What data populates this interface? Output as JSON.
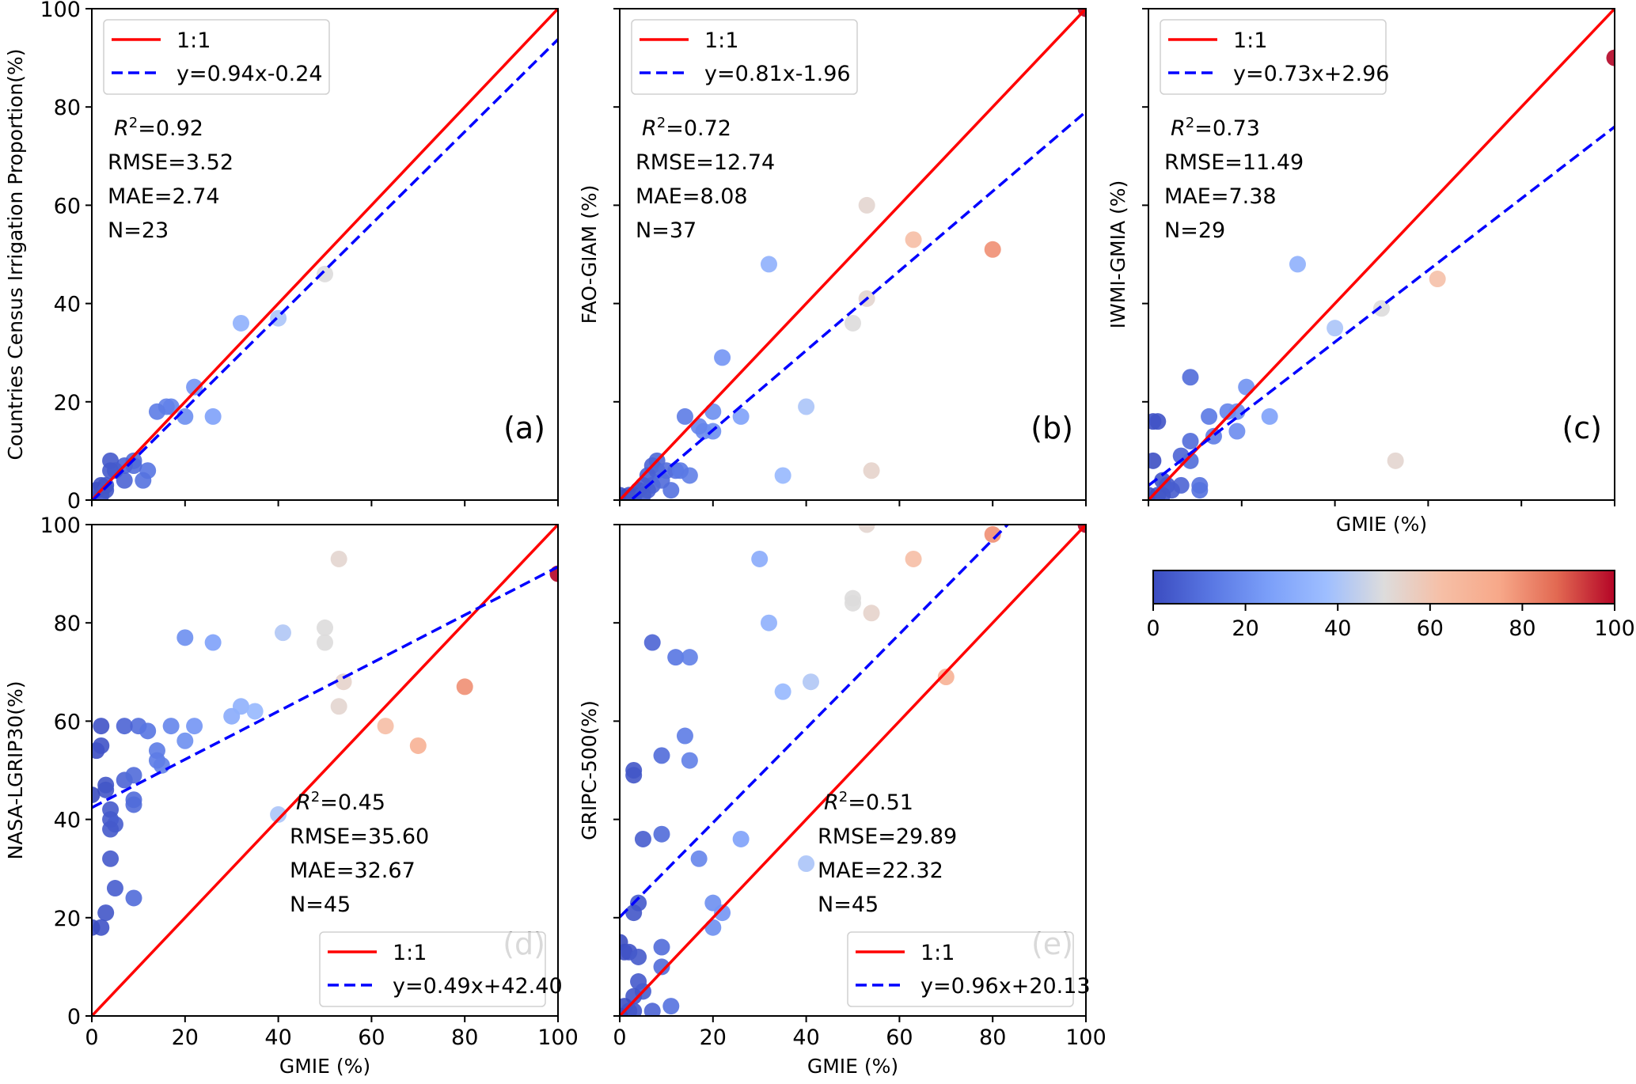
{
  "figure": {
    "colorbar": {
      "colormap": "coolwarm",
      "range": [
        0,
        100
      ],
      "ticks": [
        "0",
        "20",
        "40",
        "60",
        "80",
        "100"
      ]
    }
  },
  "chart_data": [
    {
      "id": "a",
      "type": "scatter",
      "panel_label": "(a)",
      "xlabel": "",
      "ylabel": "Countries Census Irrigation Proportion(%)",
      "xlim": [
        0,
        100
      ],
      "ylim": [
        0,
        100
      ],
      "xticks": [
        "0",
        "20",
        "40",
        "60",
        "80",
        "100"
      ],
      "yticks": [
        "0",
        "20",
        "40",
        "60",
        "80",
        "100"
      ],
      "show_xticklabels": false,
      "show_yticklabels": true,
      "legend": {
        "position": "top-left",
        "entries": [
          "1:1",
          "y=0.94x-0.24"
        ]
      },
      "fit": {
        "slope": 0.94,
        "intercept": -0.24
      },
      "stats": {
        "r2": "=0.92",
        "rmse": "RMSE=3.52",
        "mae": "MAE=2.74",
        "n": "N=23",
        "position": "upper-left"
      },
      "points": [
        [
          50,
          46
        ],
        [
          40,
          37
        ],
        [
          32,
          36
        ],
        [
          22,
          23
        ],
        [
          17,
          19
        ],
        [
          16,
          19
        ],
        [
          20,
          17
        ],
        [
          14,
          18
        ],
        [
          26,
          17
        ],
        [
          12,
          6
        ],
        [
          11,
          4
        ],
        [
          9,
          8
        ],
        [
          9,
          7
        ],
        [
          7,
          7
        ],
        [
          7,
          4
        ],
        [
          4,
          8
        ],
        [
          5,
          6
        ],
        [
          4,
          6
        ],
        [
          3,
          3
        ],
        [
          2,
          3
        ],
        [
          1,
          2
        ],
        [
          2,
          1
        ],
        [
          3,
          2
        ]
      ]
    },
    {
      "id": "b",
      "type": "scatter",
      "panel_label": "(b)",
      "xlabel": "",
      "ylabel": "FAO-GIAM (%)",
      "xlim": [
        0,
        100
      ],
      "ylim": [
        0,
        100
      ],
      "xticks": [
        "0",
        "20",
        "40",
        "60",
        "80",
        "100"
      ],
      "yticks": [
        "0",
        "20",
        "40",
        "60",
        "80",
        "100"
      ],
      "show_xticklabels": false,
      "show_yticklabels": false,
      "legend": {
        "position": "top-left",
        "entries": [
          "1:1",
          "y=0.81x-1.96"
        ]
      },
      "fit": {
        "slope": 0.81,
        "intercept": -1.96
      },
      "stats": {
        "r2": "=0.72",
        "rmse": "RMSE=12.74",
        "mae": "MAE=8.08",
        "n": "N=37",
        "position": "upper-left"
      },
      "points": [
        [
          100,
          100
        ],
        [
          53,
          60
        ],
        [
          63,
          53
        ],
        [
          80,
          51
        ],
        [
          53,
          41
        ],
        [
          50,
          36
        ],
        [
          32,
          48
        ],
        [
          22,
          29
        ],
        [
          40,
          19
        ],
        [
          35,
          5
        ],
        [
          54,
          6
        ],
        [
          20,
          18
        ],
        [
          26,
          17
        ],
        [
          14,
          17
        ],
        [
          18,
          14
        ],
        [
          20,
          14
        ],
        [
          15,
          5
        ],
        [
          11,
          2
        ],
        [
          12,
          6
        ],
        [
          8,
          8
        ],
        [
          7,
          7
        ],
        [
          8,
          6
        ],
        [
          6,
          5
        ],
        [
          7,
          3
        ],
        [
          5,
          3
        ],
        [
          4,
          2
        ],
        [
          3,
          1
        ],
        [
          2,
          1
        ],
        [
          1,
          0.5
        ],
        [
          0,
          1
        ],
        [
          9,
          4
        ],
        [
          10,
          6
        ],
        [
          6,
          2
        ],
        [
          3,
          0
        ],
        [
          13,
          6
        ],
        [
          17,
          15
        ],
        [
          5,
          1
        ]
      ]
    },
    {
      "id": "c",
      "type": "scatter",
      "panel_label": "(c)",
      "xlabel": "GMIE (%)",
      "ylabel": "IWMI-GMIA (%)",
      "xlim": [
        0,
        100
      ],
      "ylim": [
        0,
        100
      ],
      "xticks": [
        "0",
        "20",
        "40",
        "60",
        "80",
        "100"
      ],
      "yticks": [
        "0",
        "20",
        "40",
        "60",
        "80",
        "100"
      ],
      "show_xticklabels": false,
      "show_yticklabels": false,
      "legend": {
        "position": "top-left",
        "entries": [
          "1:1",
          "y=0.73x+2.96"
        ]
      },
      "fit": {
        "slope": 0.73,
        "intercept": 2.96
      },
      "stats": {
        "r2": "=0.73",
        "rmse": "RMSE=11.49",
        "mae": "MAE=7.38",
        "n": "N=29",
        "position": "upper-left"
      },
      "points": [
        [
          100,
          90
        ],
        [
          32,
          48
        ],
        [
          62,
          45
        ],
        [
          50,
          39
        ],
        [
          40,
          35
        ],
        [
          53,
          8
        ],
        [
          9,
          25
        ],
        [
          21,
          23
        ],
        [
          17,
          18
        ],
        [
          19,
          18
        ],
        [
          26,
          17
        ],
        [
          13,
          17
        ],
        [
          19,
          14
        ],
        [
          14,
          13
        ],
        [
          1,
          16
        ],
        [
          2,
          16
        ],
        [
          9,
          12
        ],
        [
          7,
          9
        ],
        [
          9,
          8
        ],
        [
          1,
          8
        ],
        [
          7,
          3
        ],
        [
          11,
          3
        ],
        [
          11,
          2
        ],
        [
          3,
          4
        ],
        [
          4,
          3
        ],
        [
          5,
          2
        ],
        [
          2,
          1
        ],
        [
          0,
          1
        ],
        [
          3,
          1
        ]
      ]
    },
    {
      "id": "d",
      "type": "scatter",
      "panel_label": "(d)",
      "xlabel": "GMIE (%)",
      "ylabel": "NASA-LGRIP30(%)",
      "xlim": [
        0,
        100
      ],
      "ylim": [
        0,
        100
      ],
      "xticks": [
        "0",
        "20",
        "40",
        "60",
        "80",
        "100"
      ],
      "yticks": [
        "0",
        "20",
        "40",
        "60",
        "80",
        "100"
      ],
      "show_xticklabels": true,
      "show_yticklabels": true,
      "legend": {
        "position": "bottom-right",
        "entries": [
          "1:1",
          "y=0.49x+42.40"
        ]
      },
      "fit": {
        "slope": 0.49,
        "intercept": 42.4
      },
      "stats": {
        "r2": "=0.45",
        "rmse": "RMSE=35.60",
        "mae": "MAE=32.67",
        "n": "N=45",
        "position": "lower-middle"
      },
      "points": [
        [
          100,
          90
        ],
        [
          53,
          93
        ],
        [
          50,
          79
        ],
        [
          50,
          76
        ],
        [
          41,
          78
        ],
        [
          20,
          77
        ],
        [
          26,
          76
        ],
        [
          80,
          67
        ],
        [
          54,
          68
        ],
        [
          53,
          63
        ],
        [
          63,
          59
        ],
        [
          70,
          55
        ],
        [
          30,
          61
        ],
        [
          32,
          63
        ],
        [
          35,
          62
        ],
        [
          40,
          41
        ],
        [
          17,
          59
        ],
        [
          22,
          59
        ],
        [
          10,
          59
        ],
        [
          12,
          58
        ],
        [
          7,
          59
        ],
        [
          2,
          59
        ],
        [
          1,
          54
        ],
        [
          2,
          55
        ],
        [
          20,
          56
        ],
        [
          14,
          54
        ],
        [
          14,
          52
        ],
        [
          15,
          51
        ],
        [
          7,
          48
        ],
        [
          9,
          49
        ],
        [
          3,
          47
        ],
        [
          3,
          46
        ],
        [
          9,
          44
        ],
        [
          9,
          43
        ],
        [
          4,
          42
        ],
        [
          4,
          40
        ],
        [
          5,
          39
        ],
        [
          4,
          38
        ],
        [
          0,
          45
        ],
        [
          4,
          32
        ],
        [
          5,
          26
        ],
        [
          9,
          24
        ],
        [
          3,
          21
        ],
        [
          2,
          18
        ],
        [
          0,
          18
        ]
      ]
    },
    {
      "id": "e",
      "type": "scatter",
      "panel_label": "(e)",
      "xlabel": "GMIE (%)",
      "ylabel": "GRIPC-500(%)",
      "xlim": [
        0,
        100
      ],
      "ylim": [
        0,
        100
      ],
      "xticks": [
        "0",
        "20",
        "40",
        "60",
        "80",
        "100"
      ],
      "yticks": [
        "0",
        "20",
        "40",
        "60",
        "80",
        "100"
      ],
      "show_xticklabels": true,
      "show_yticklabels": false,
      "legend": {
        "position": "bottom-right",
        "entries": [
          "1:1",
          "y=0.96x+20.13"
        ]
      },
      "fit": {
        "slope": 0.96,
        "intercept": 20.13
      },
      "stats": {
        "r2": "=0.51",
        "rmse": "RMSE=29.89",
        "mae": "MAE=22.32",
        "n": "N=45",
        "position": "lower-middle"
      },
      "points": [
        [
          100,
          100
        ],
        [
          53,
          100
        ],
        [
          80,
          98
        ],
        [
          30,
          93
        ],
        [
          63,
          93
        ],
        [
          50,
          85
        ],
        [
          50,
          84
        ],
        [
          54,
          82
        ],
        [
          32,
          80
        ],
        [
          7,
          76
        ],
        [
          12,
          73
        ],
        [
          15,
          73
        ],
        [
          70,
          69
        ],
        [
          41,
          68
        ],
        [
          35,
          66
        ],
        [
          14,
          57
        ],
        [
          15,
          52
        ],
        [
          9,
          53
        ],
        [
          3,
          50
        ],
        [
          3,
          49
        ],
        [
          9,
          37
        ],
        [
          5,
          36
        ],
        [
          26,
          36
        ],
        [
          17,
          32
        ],
        [
          40,
          31
        ],
        [
          4,
          23
        ],
        [
          3,
          21
        ],
        [
          20,
          23
        ],
        [
          22,
          21
        ],
        [
          20,
          18
        ],
        [
          0,
          15
        ],
        [
          1,
          13
        ],
        [
          2,
          13
        ],
        [
          4,
          12
        ],
        [
          9,
          14
        ],
        [
          9,
          10
        ],
        [
          4,
          7
        ],
        [
          5,
          5
        ],
        [
          3,
          4
        ],
        [
          1,
          2
        ],
        [
          2,
          1
        ],
        [
          7,
          1
        ],
        [
          11,
          2
        ],
        [
          3,
          1
        ],
        [
          0,
          0
        ]
      ]
    }
  ]
}
